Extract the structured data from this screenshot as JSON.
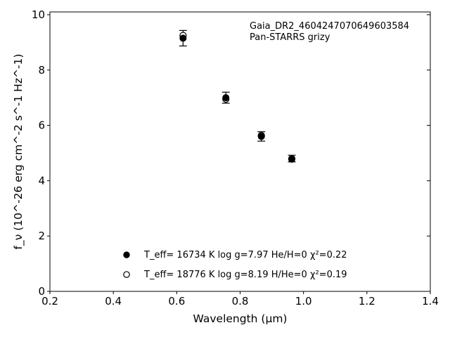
{
  "chart_data": {
    "type": "scatter",
    "title": "",
    "annotation": [
      "Gaia_DR2_4604247070649603584",
      "Pan-STARRS grizy"
    ],
    "xlabel": "Wavelength (μm)",
    "ylabel": "f_ν (10^-26 erg cm^-2 s^-1 Hz^-1)",
    "xlim": [
      0.2,
      1.4
    ],
    "ylim": [
      0,
      10.1
    ],
    "xticks": [
      "0.2",
      "0.4",
      "0.6",
      "0.8",
      "1.0",
      "1.2",
      "1.4"
    ],
    "yticks": [
      "0",
      "2",
      "4",
      "6",
      "8",
      "10"
    ],
    "grid": false,
    "legend_position": "bottom-center",
    "series": [
      {
        "name": "T_eff= 16734 K  log g=7.97  He/H=0  χ²=0.22",
        "marker": "filled-circle",
        "color": "#000000",
        "points": [
          {
            "x": 0.62,
            "y": 9.15,
            "yerr": 0.28
          },
          {
            "x": 0.755,
            "y": 7.0,
            "yerr": 0.2
          },
          {
            "x": 0.867,
            "y": 5.6,
            "yerr": 0.17
          },
          {
            "x": 0.963,
            "y": 4.8,
            "yerr": 0.12
          }
        ]
      },
      {
        "name": "T_eff= 18776 K  log g=8.19  H/He=0  χ²=0.19",
        "marker": "open-circle",
        "color": "#000000",
        "points": [
          {
            "x": 0.62,
            "y": 9.25
          },
          {
            "x": 0.755,
            "y": 6.95
          },
          {
            "x": 0.867,
            "y": 5.63
          },
          {
            "x": 0.963,
            "y": 4.78
          }
        ]
      }
    ]
  }
}
